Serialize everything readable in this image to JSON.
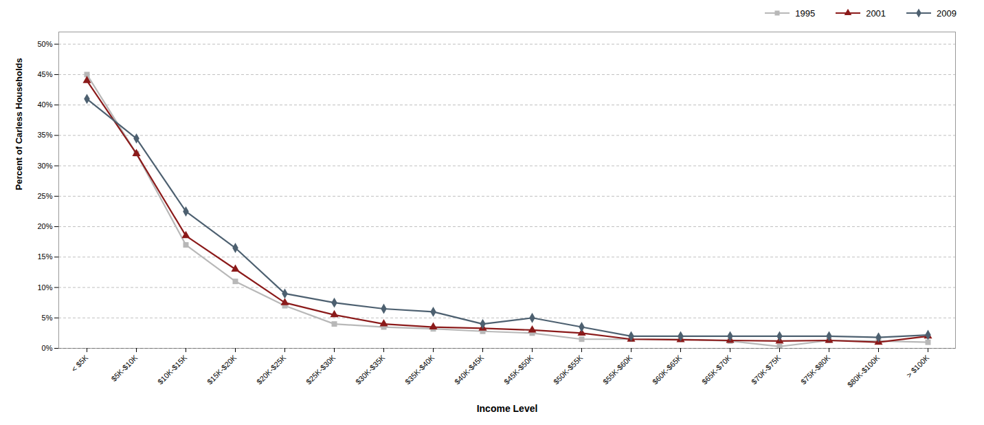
{
  "chart_data": {
    "type": "line",
    "categories": [
      "< $5K",
      "$5K-$10K",
      "$10K-$15K",
      "$15K-$20K",
      "$20K-$25K",
      "$25K-$30K",
      "$30K-$35K",
      "$35K-$40K",
      "$40K-$45K",
      "$45K-$50K",
      "$50K-$55K",
      "$55K-$60K",
      "$60K-$65K",
      "$65K-$70K",
      "$70K-$75K",
      "$75K-$80K",
      "$80K-$100K",
      "> $100K"
    ],
    "series": [
      {
        "name": "1995",
        "color": "#b8b8b8",
        "marker": "square",
        "values": [
          0.45,
          0.32,
          0.17,
          0.11,
          0.07,
          0.04,
          0.035,
          0.032,
          0.028,
          0.025,
          0.015,
          0.015,
          0.015,
          0.012,
          0.003,
          0.013,
          0.012,
          0.01
        ]
      },
      {
        "name": "2001",
        "color": "#8b1a1a",
        "marker": "triangle",
        "values": [
          0.44,
          0.32,
          0.185,
          0.13,
          0.075,
          0.055,
          0.04,
          0.035,
          0.033,
          0.03,
          0.025,
          0.015,
          0.014,
          0.013,
          0.012,
          0.013,
          0.01,
          0.02
        ]
      },
      {
        "name": "2009",
        "color": "#4d6070",
        "marker": "diamond",
        "values": [
          0.41,
          0.345,
          0.225,
          0.165,
          0.09,
          0.075,
          0.065,
          0.06,
          0.04,
          0.05,
          0.035,
          0.02,
          0.02,
          0.02,
          0.02,
          0.02,
          0.018,
          0.022
        ]
      }
    ],
    "xlabel": "Income Level",
    "ylabel": "Percent of Carless Households",
    "ylim": [
      0,
      0.52
    ],
    "yticks": [
      {
        "value": 0.0,
        "label": "0%"
      },
      {
        "value": 0.05,
        "label": "5%"
      },
      {
        "value": 0.1,
        "label": "10%"
      },
      {
        "value": 0.15,
        "label": "15%"
      },
      {
        "value": 0.2,
        "label": "20%"
      },
      {
        "value": 0.25,
        "label": "25%"
      },
      {
        "value": 0.3,
        "label": "30%"
      },
      {
        "value": 0.35,
        "label": "35%"
      },
      {
        "value": 0.4,
        "label": "40%"
      },
      {
        "value": 0.45,
        "label": "45%"
      },
      {
        "value": 0.5,
        "label": "50%"
      }
    ],
    "grid": true,
    "legend": "upper right"
  }
}
